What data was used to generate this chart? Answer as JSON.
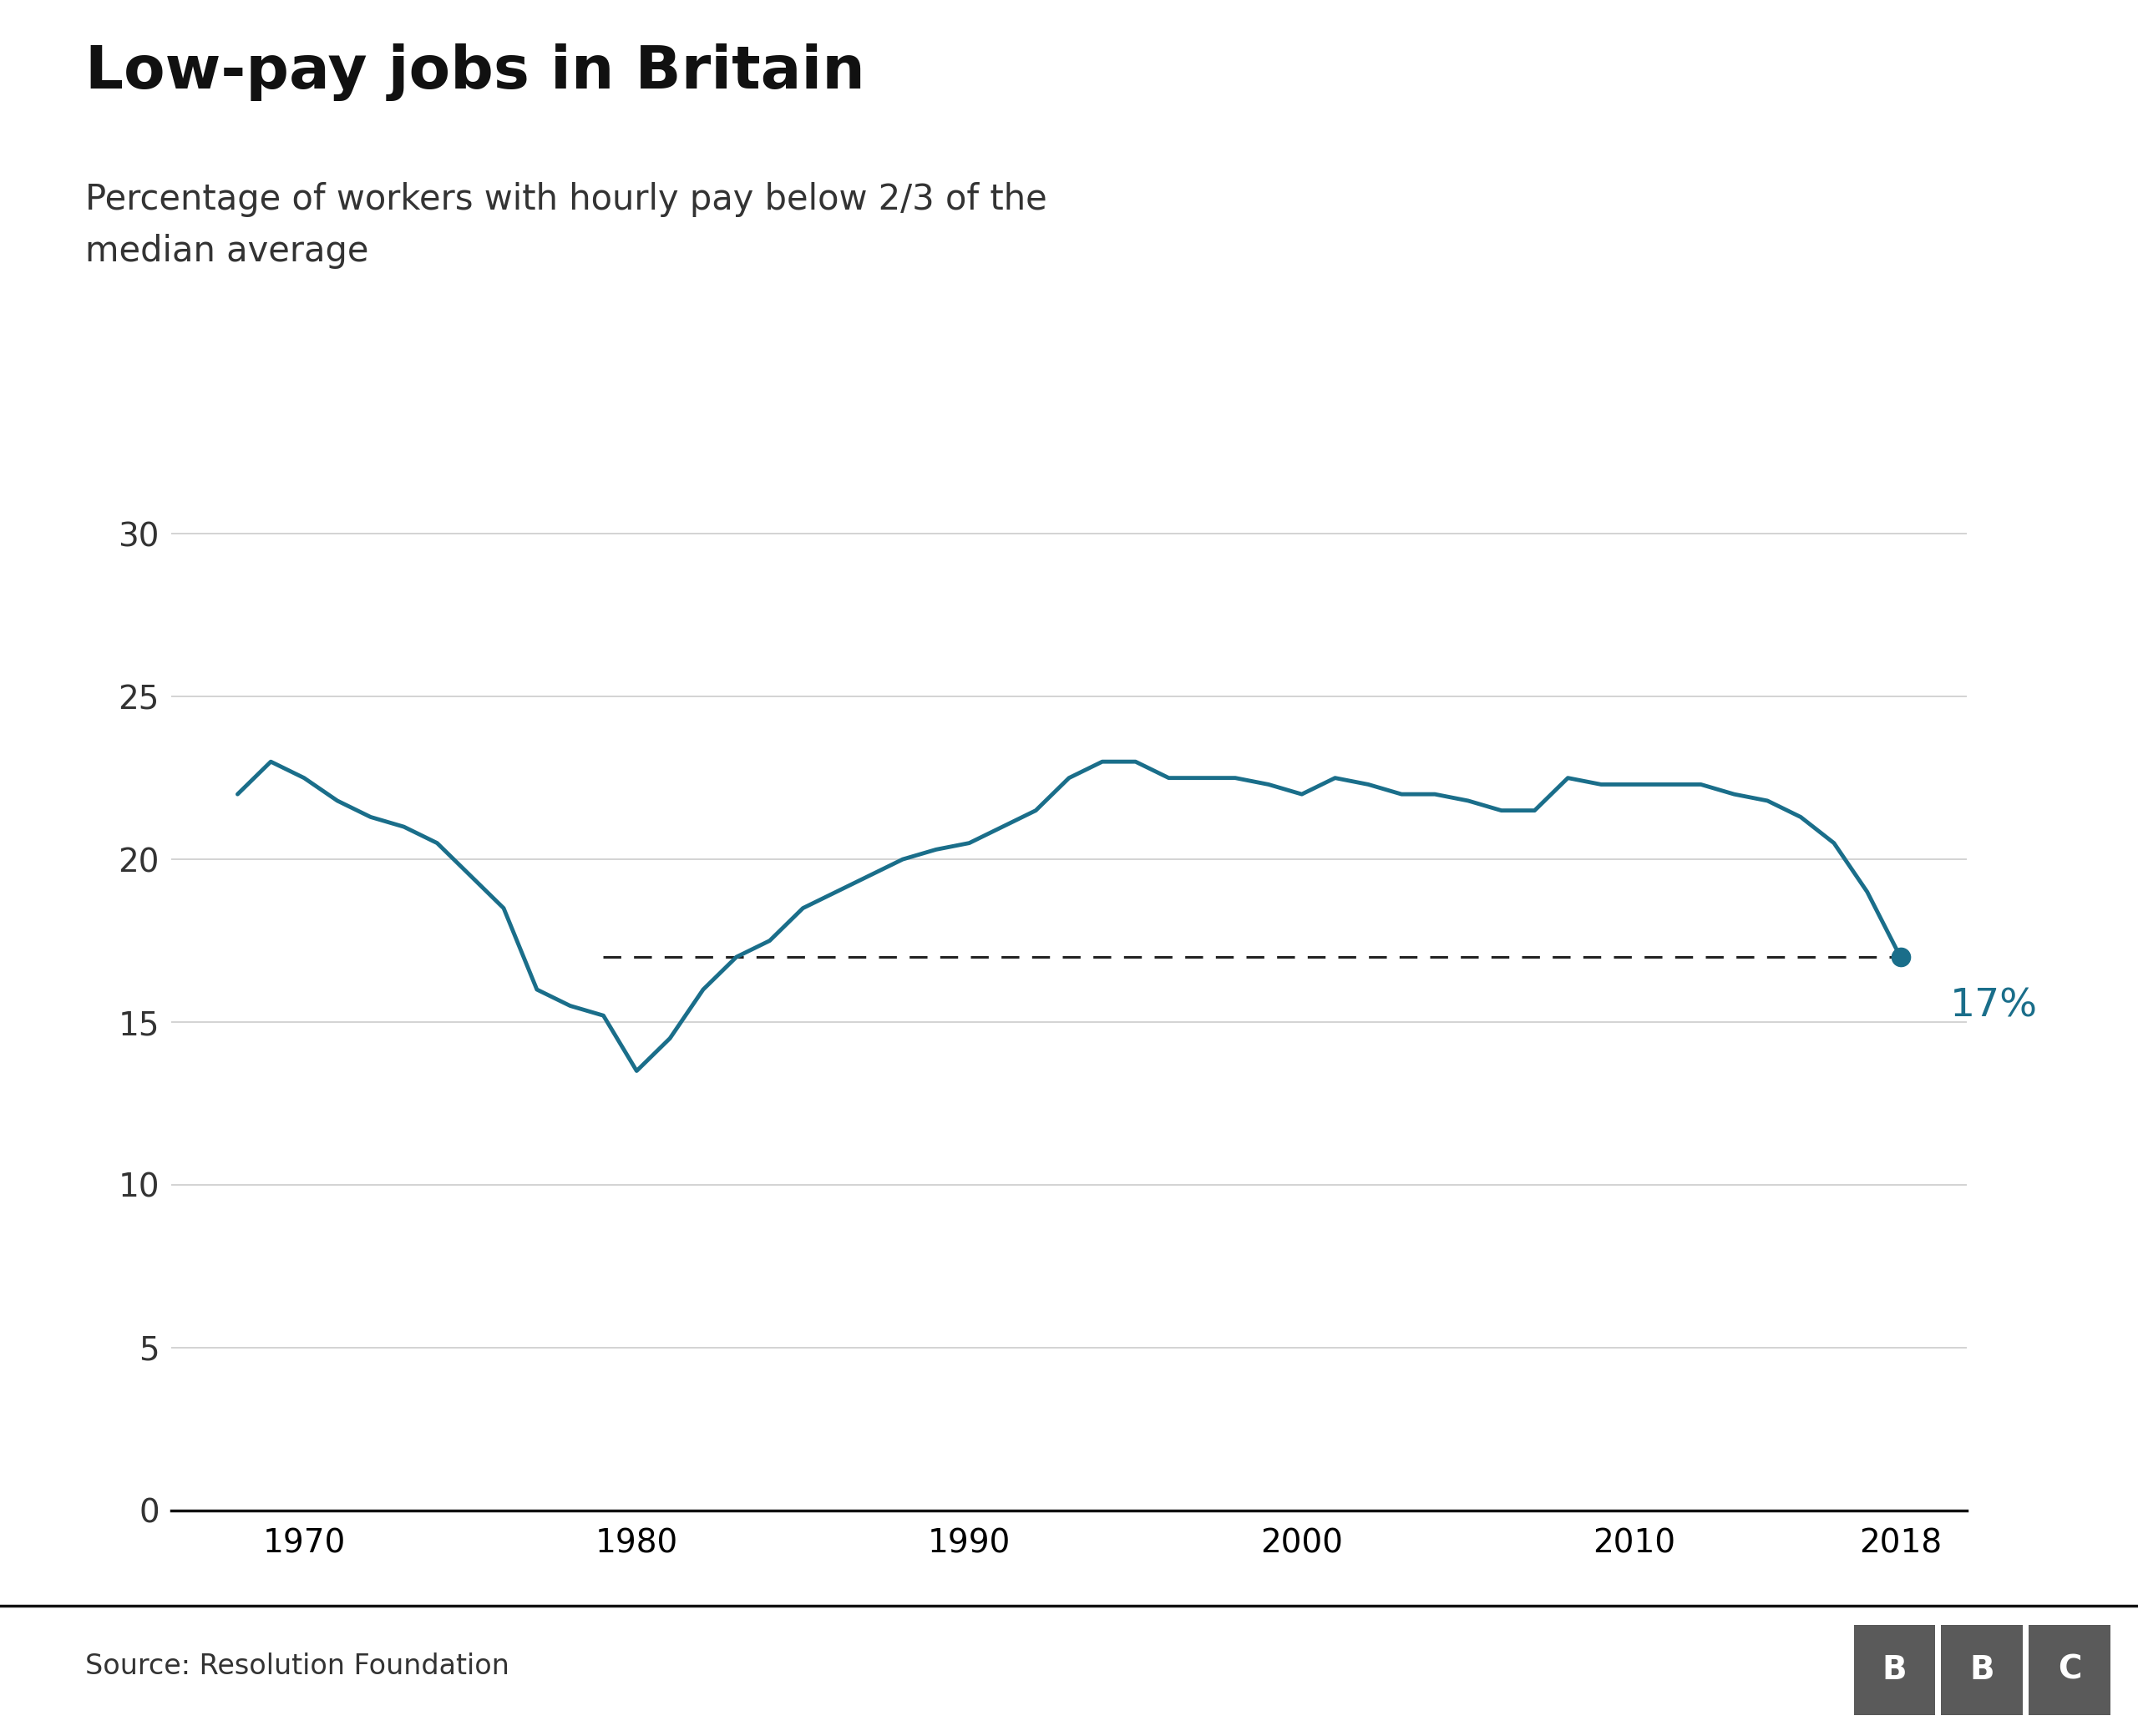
{
  "title": "Low-pay jobs in Britain",
  "subtitle": "Percentage of workers with hourly pay below 2/3 of the\nmedian average",
  "source": "Source: Resolution Foundation",
  "line_color": "#1a6e8a",
  "dashed_line_y": 17,
  "annotation_label": "17%",
  "annotation_color": "#1a6e8a",
  "years": [
    1968,
    1969,
    1970,
    1971,
    1972,
    1973,
    1974,
    1975,
    1976,
    1977,
    1978,
    1979,
    1980,
    1981,
    1982,
    1983,
    1984,
    1985,
    1986,
    1987,
    1988,
    1989,
    1990,
    1991,
    1992,
    1993,
    1994,
    1995,
    1996,
    1997,
    1998,
    1999,
    2000,
    2001,
    2002,
    2003,
    2004,
    2005,
    2006,
    2007,
    2008,
    2009,
    2010,
    2011,
    2012,
    2013,
    2014,
    2015,
    2016,
    2017,
    2018
  ],
  "values": [
    22.0,
    23.0,
    22.5,
    21.8,
    21.3,
    21.0,
    20.5,
    19.5,
    18.5,
    16.0,
    15.5,
    15.2,
    13.5,
    14.5,
    16.0,
    17.0,
    17.5,
    18.5,
    19.0,
    19.5,
    20.0,
    20.3,
    20.5,
    21.0,
    21.5,
    22.5,
    23.0,
    23.0,
    22.5,
    22.5,
    22.5,
    22.3,
    22.0,
    22.5,
    22.3,
    22.0,
    22.0,
    21.8,
    21.5,
    21.5,
    22.5,
    22.3,
    22.3,
    22.3,
    22.3,
    22.0,
    21.8,
    21.3,
    20.5,
    19.0,
    17.0
  ],
  "ylim": [
    0,
    32
  ],
  "yticks": [
    0,
    5,
    10,
    15,
    20,
    25,
    30
  ],
  "xlim": [
    1966,
    2020
  ],
  "xticks": [
    1970,
    1980,
    1990,
    2000,
    2010,
    2018
  ],
  "bg_color": "#ffffff",
  "grid_color": "#cccccc",
  "title_fontsize": 52,
  "subtitle_fontsize": 30,
  "tick_fontsize": 28,
  "source_fontsize": 24,
  "bbc_color": "#5a5a5a"
}
